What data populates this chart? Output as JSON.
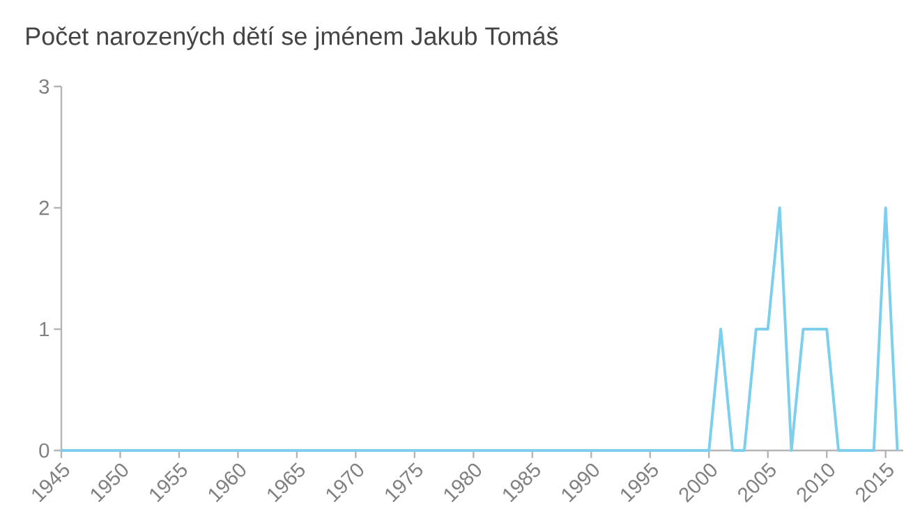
{
  "chart_data": {
    "type": "line",
    "title": "Počet narozených dětí se jménem Jakub Tomáš",
    "x": [
      1945,
      2000,
      2001,
      2002,
      2003,
      2004,
      2005,
      2006,
      2007,
      2008,
      2009,
      2010,
      2011,
      2014,
      2015,
      2016
    ],
    "series": [
      {
        "color": "#7ecfee",
        "values": [
          0,
          0,
          1,
          0,
          0,
          1,
          1,
          2,
          0,
          1,
          1,
          1,
          0,
          0,
          2,
          0
        ]
      }
    ],
    "xlim": [
      1945,
      2016.5
    ],
    "xticks": [
      1945,
      1950,
      1955,
      1960,
      1965,
      1970,
      1975,
      1980,
      1985,
      1990,
      1995,
      2000,
      2005,
      2010,
      2015
    ],
    "ylim": [
      0,
      3
    ],
    "yticks": [
      0,
      1,
      2,
      3
    ],
    "grid": false
  }
}
